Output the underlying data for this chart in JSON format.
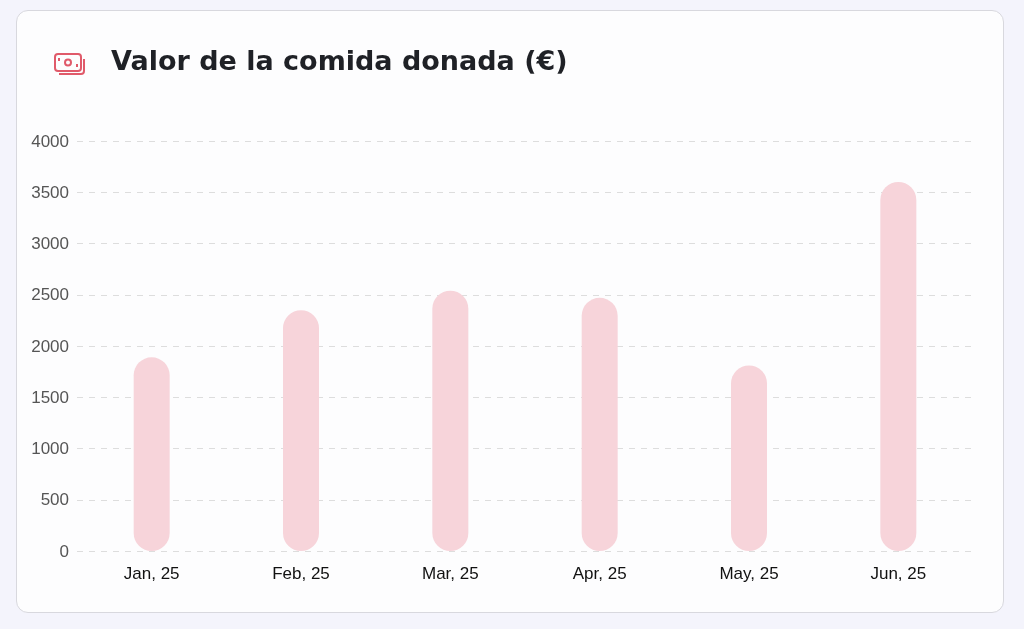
{
  "chart_data": {
    "type": "bar",
    "title": "Valor de la comida donada (€)",
    "categories": [
      "Jan, 25",
      "Feb, 25",
      "Mar, 25",
      "Apr, 25",
      "May, 25",
      "Jun, 25"
    ],
    "values": [
      1890,
      2350,
      2540,
      2470,
      1810,
      3600
    ],
    "color": "#f7d4da",
    "ylim": [
      0,
      4000
    ],
    "yticks": [
      0,
      500,
      1000,
      1500,
      2000,
      2500,
      3000,
      3500,
      4000
    ],
    "grid": "y",
    "line_style": "dashed"
  }
}
